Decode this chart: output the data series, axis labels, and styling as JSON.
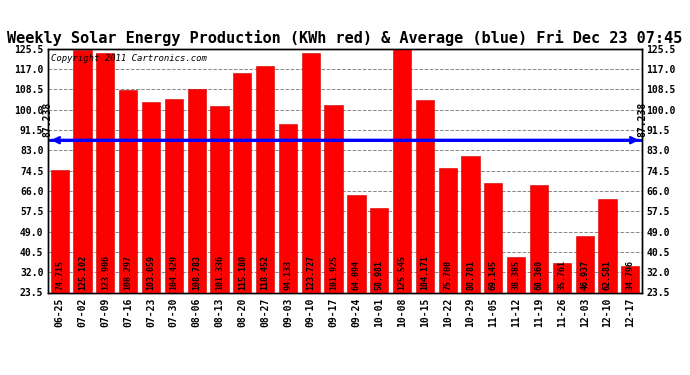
{
  "title": "Weekly Solar Energy Production (KWh red) & Average (blue) Fri Dec 23 07:45",
  "copyright": "Copyright 2011 Cartronics.com",
  "categories": [
    "06-25",
    "07-02",
    "07-09",
    "07-16",
    "07-23",
    "07-30",
    "08-06",
    "08-13",
    "08-20",
    "08-27",
    "09-03",
    "09-10",
    "09-17",
    "09-24",
    "10-01",
    "10-08",
    "10-15",
    "10-22",
    "10-29",
    "11-05",
    "11-12",
    "11-19",
    "11-26",
    "12-03",
    "12-10",
    "12-17"
  ],
  "values": [
    74.715,
    125.102,
    123.906,
    108.297,
    103.059,
    104.429,
    108.783,
    101.336,
    115.18,
    118.452,
    94.133,
    123.727,
    101.925,
    64.094,
    58.981,
    125.545,
    104.171,
    75.7,
    80.781,
    69.145,
    38.385,
    68.36,
    35.761,
    46.937,
    62.581,
    34.796
  ],
  "average": 87.238,
  "average_label": "87.238",
  "bar_color": "#ff0000",
  "bar_edge_color": "#cc0000",
  "avg_line_color": "#0000ff",
  "bg_color": "#ffffff",
  "plot_bg_color": "#ffffff",
  "grid_color": "#888888",
  "ylim_min": 23.5,
  "ylim_max": 125.5,
  "yticks": [
    23.5,
    32.0,
    40.5,
    49.0,
    57.5,
    66.0,
    74.5,
    83.0,
    91.5,
    100.0,
    108.5,
    117.0,
    125.5
  ],
  "title_fontsize": 11,
  "tick_fontsize": 7,
  "bar_label_fontsize": 6,
  "copyright_fontsize": 6.5
}
